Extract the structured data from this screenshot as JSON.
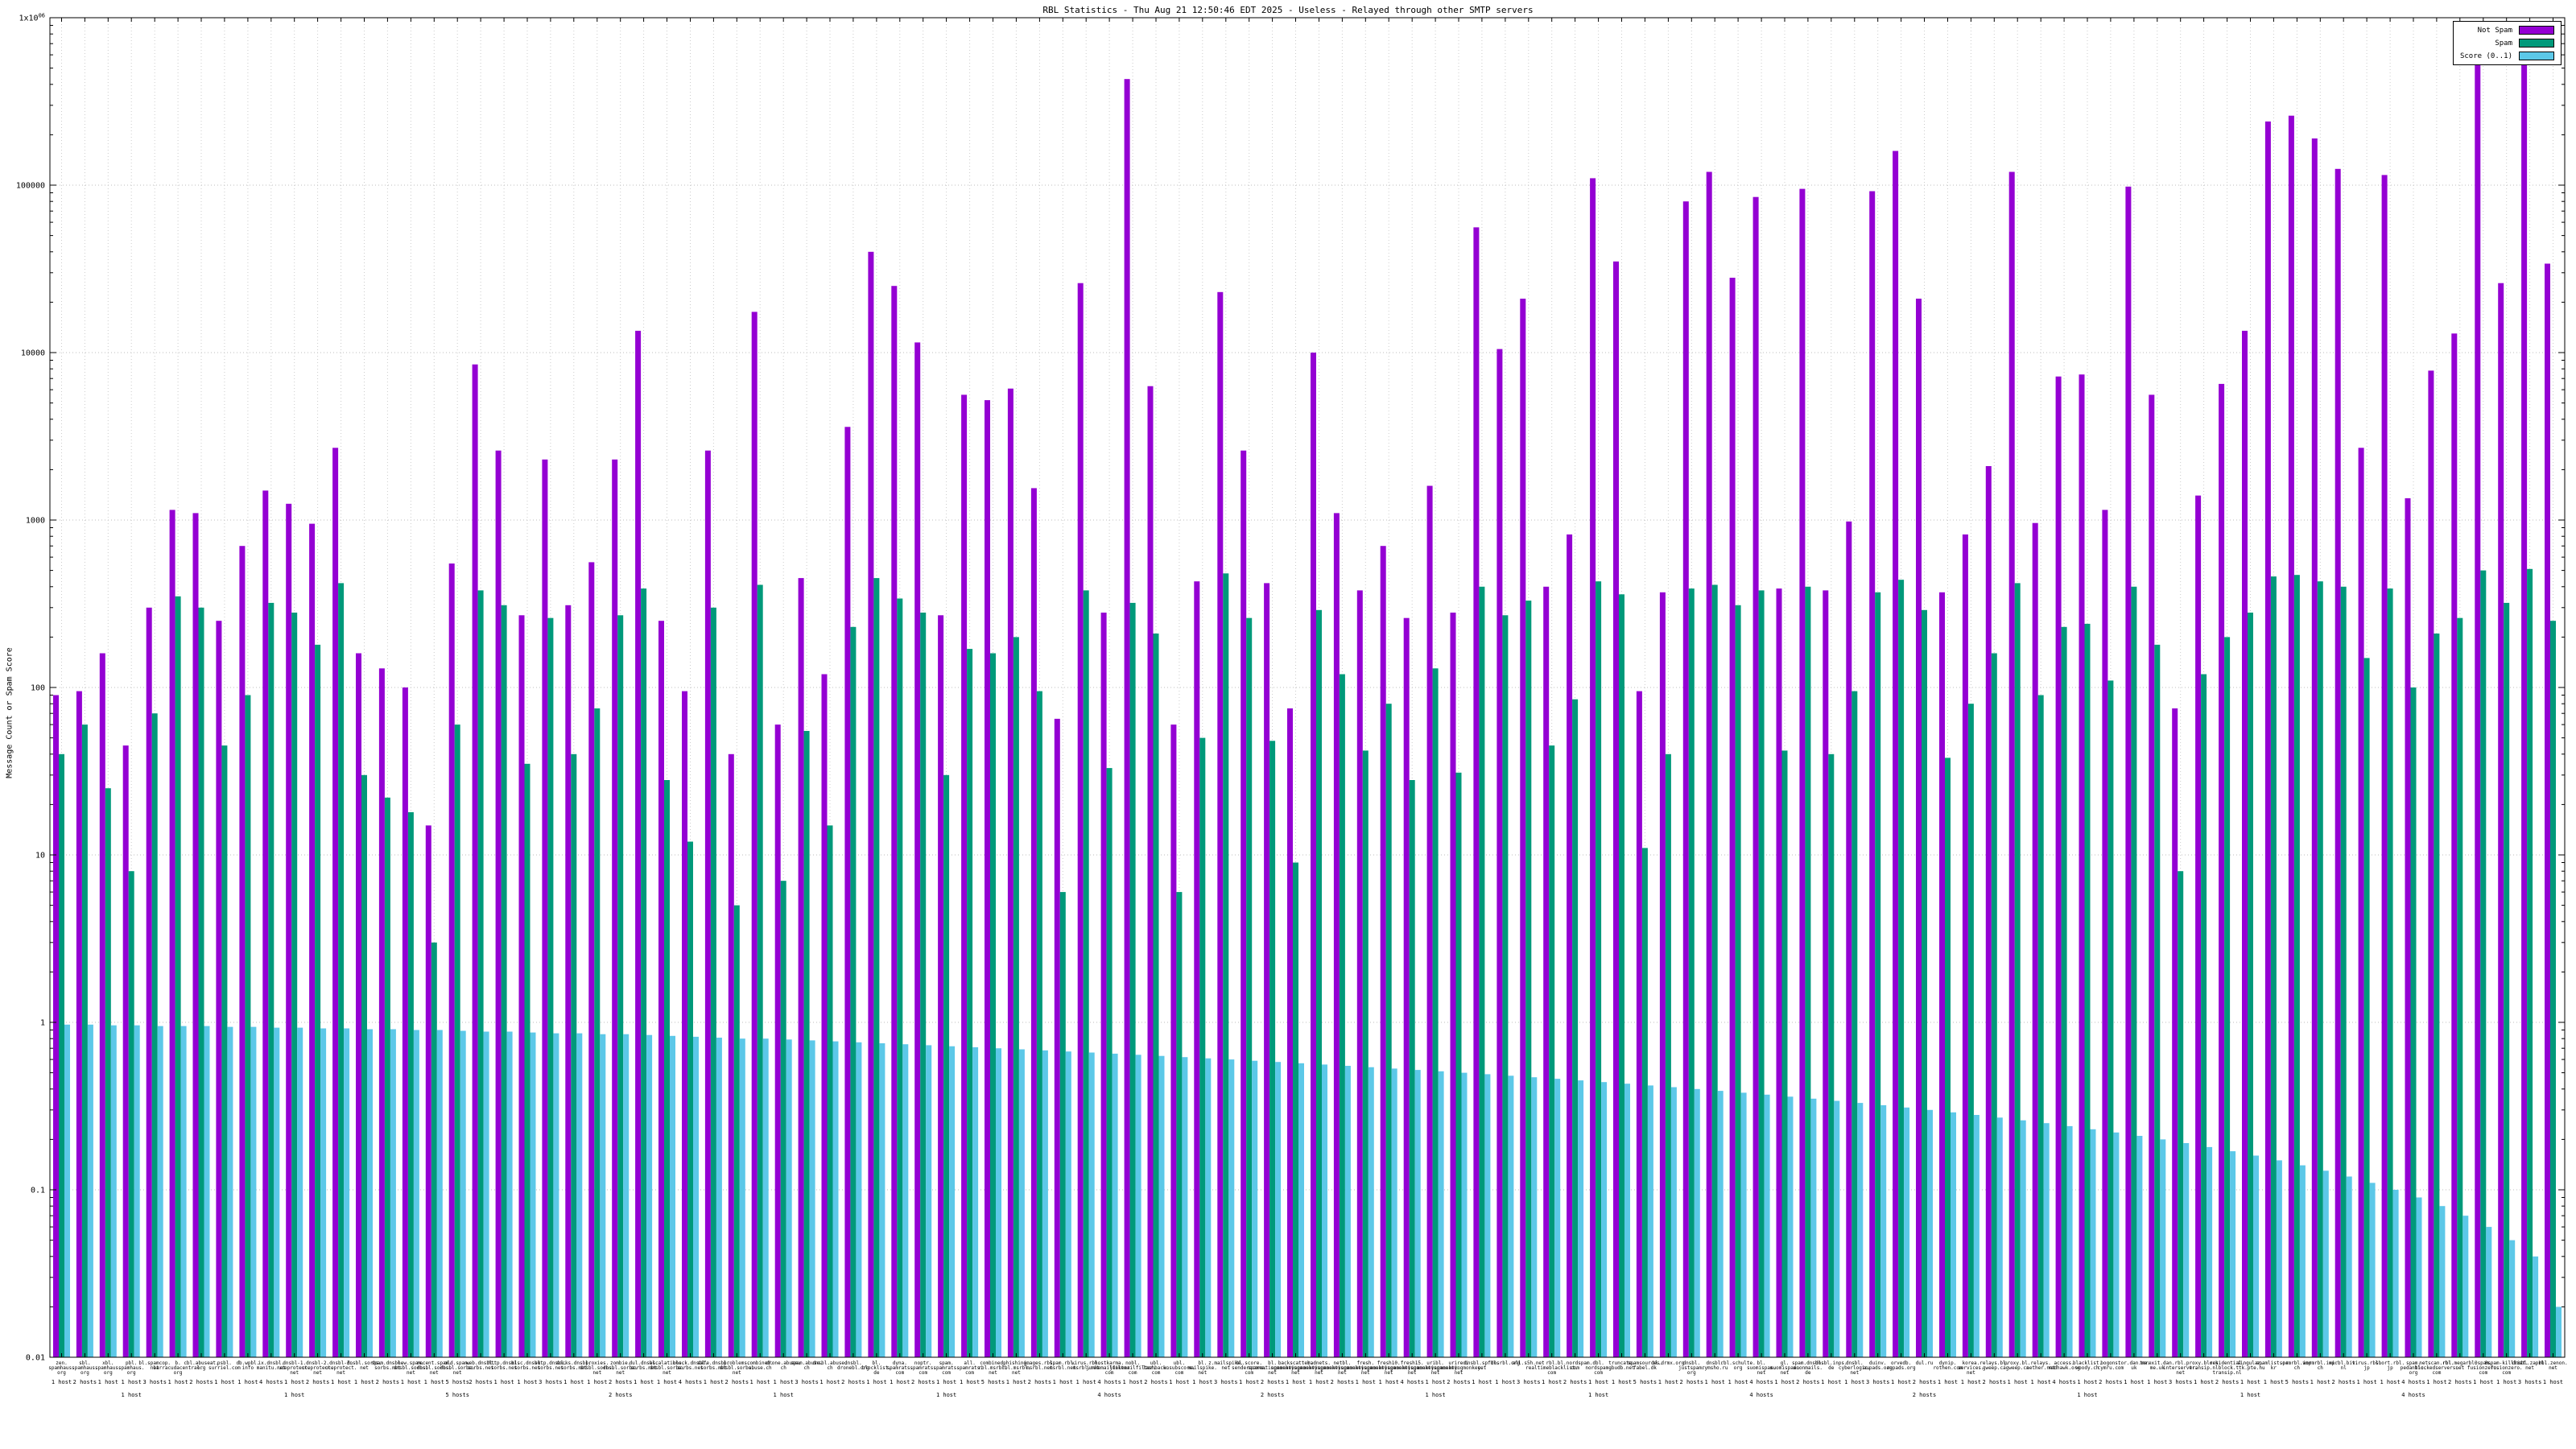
{
  "page": {
    "title": "RBL Statistics"
  },
  "chart_data": {
    "type": "bar",
    "title": "RBL Statistics - Thu Aug 21 12:50:46 EDT 2025 - Useless - Relayed through other SMTP servers",
    "ylabel": "Message Count or Spam Score",
    "y_ticks": [
      "0.01",
      "0.1",
      "1",
      "10",
      "100",
      "1000",
      "10000",
      "100000",
      "1x10^06"
    ],
    "ylim": [
      0.01,
      1000000
    ],
    "log_scale": true,
    "grid": true,
    "legend_position": "top-right",
    "legend": [
      {
        "name": "Not Spam",
        "color": "#9400d3"
      },
      {
        "name": "Spam",
        "color": "#00997a"
      },
      {
        "name": "Score (0..1)",
        "color": "#5cc8e8"
      }
    ],
    "categories": [
      "zen.spamhaus.org",
      "sbl.spamhaus.org",
      "xbl.spamhaus.org",
      "pbl.spamhaus.org",
      "bl.spamcop.net",
      "b.barracudacentral.org",
      "cbl.abuseat.org",
      "psbl.surriel.com",
      "db.wpbl.info",
      "ix.dnsbl.manitu.net",
      "dnsbl-1.uceprotect.net",
      "dnsbl-2.uceprotect.net",
      "dnsbl-3.uceprotect.net",
      "dnsbl.sorbs.net",
      "spam.dnsbl.sorbs.net",
      "new.spam.dnsbl.sorbs.net",
      "recent.spam.dnsbl.sorbs.net",
      "old.spam.dnsbl.sorbs.net",
      "web.dnsbl.sorbs.net",
      "http.dnsbl.sorbs.net",
      "misc.dnsbl.sorbs.net",
      "smtp.dnsbl.sorbs.net",
      "socks.dnsbl.sorbs.net",
      "proxies.dnsbl.sorbs.net",
      "zombie.dnsbl.sorbs.net",
      "dul.dnsbl.sorbs.net",
      "escalations.dnsbl.sorbs.net",
      "block.dnsbl.sorbs.net",
      "safe.dnsbl.sorbs.net",
      "problems.dnsbl.sorbs.net",
      "combined.abuse.ch",
      "drone.abuse.ch",
      "spam.abuse.ch",
      "dnsbl.abuse.ch",
      "dnsbl.dronebl.org",
      "bl.blocklist.de",
      "dyna.spamrats.com",
      "noptr.spamrats.com",
      "spam.spamrats.com",
      "all.spamrats.com",
      "combined.rbl.msrbl.net",
      "phishing.rbl.msrbl.net",
      "images.rbl.msrbl.net",
      "spam.rbl.msrbl.net",
      "virus.rbl.msrbl.net",
      "hostkarma.junkemailfilter.com",
      "nobl.junkemailfilter.com",
      "ubl.lashback.com",
      "ubl.unsubscore.com",
      "bl.mailspike.net",
      "z.mailspike.net",
      "bl.score.senderscore.com",
      "bl.spameatingmonkey.net",
      "backscatter.spameatingmonkey.net",
      "badnets.spameatingmonkey.net",
      "netbl.spameatingmonkey.net",
      "fresh.spameatingmonkey.net",
      "fresh10.spameatingmonkey.net",
      "fresh15.spameatingmonkey.net",
      "uribl.spameatingmonkey.net",
      "urired.spameatingmonkey.net",
      "dnsbl.spfbl.net",
      "dnsrbl.org",
      "all.s5h.net",
      "rbl.realtimeblacklist.com",
      "bl.nordspam.com",
      "dbl.nordspam.com",
      "truncate.gbudb.net",
      "spamsources.fabel.dk",
      "bl.drmx.org",
      "dnsbl.justspam.org",
      "dnsbl.rymsho.ru",
      "rbl.schulte.org",
      "bl.suomispam.net",
      "gl.suomispam.net",
      "spam.dnsbl.anonmails.de",
      "dnsbl.inps.de",
      "dnsbl.cyberlogic.net",
      "duinv.aupads.org",
      "orvedb.aupads.org",
      "dul.ru",
      "dynip.rothen.com",
      "korea.services.net",
      "relays.bl.gweep.ca",
      "proxy.bl.gweep.ca",
      "relays.nether.net",
      "access.redhawk.org",
      "blacklist.woody.ch",
      "bogons.cymru.com",
      "tor.dan.me.uk",
      "torexit.dan.me.uk",
      "rbl.interserver.net",
      "proxy.block.transip.nl",
      "residential.block.transip.nl",
      "singular.ttk.pte.hu",
      "spamlist.or.kr",
      "spamrbl.imp.ch",
      "wormrbl.imp.ch",
      "virbl.bit.nl",
      "virus.rbl.jp",
      "short.rbl.jp",
      "spam.pedantic.org",
      "netscan.rbl.blockedservers.com",
      "rbl.megarbl.net",
      "0spam.fusionzero.com",
      "0spam-killlist.fusionzero.com",
      "dnsbl.zapbl.net",
      "rbl.zenon.net"
    ],
    "host_counts": [
      "1 host",
      "2 hosts",
      "1 host",
      "1 host",
      "3 hosts",
      "1 host",
      "2 hosts",
      "1 host",
      "1 host",
      "4 hosts",
      "1 host",
      "2 hosts",
      "1 host",
      "1 host",
      "2 hosts",
      "1 host",
      "1 host",
      "5 hosts",
      "2 hosts",
      "1 host",
      "1 host",
      "3 hosts",
      "1 host",
      "1 host",
      "2 hosts",
      "1 host",
      "1 host",
      "4 hosts",
      "1 host",
      "2 hosts",
      "1 host",
      "1 host",
      "3 hosts",
      "1 host",
      "2 hosts",
      "1 host",
      "1 host",
      "2 hosts",
      "1 host",
      "1 host",
      "5 hosts",
      "1 host",
      "2 hosts",
      "1 host",
      "1 host",
      "4 hosts",
      "1 host",
      "2 hosts",
      "1 host",
      "1 host",
      "3 hosts",
      "1 host",
      "2 hosts",
      "1 host",
      "1 host",
      "2 hosts",
      "1 host",
      "1 host",
      "4 hosts",
      "1 host",
      "2 hosts",
      "1 host",
      "1 host",
      "3 hosts",
      "1 host",
      "2 hosts",
      "1 host",
      "1 host",
      "5 hosts",
      "1 host",
      "2 hosts",
      "1 host",
      "1 host",
      "4 hosts",
      "1 host",
      "2 hosts",
      "1 host",
      "1 host",
      "3 hosts",
      "1 host",
      "2 hosts",
      "1 host",
      "1 host",
      "2 hosts",
      "1 host",
      "1 host",
      "4 hosts",
      "1 host",
      "2 hosts",
      "1 host",
      "1 host",
      "3 hosts",
      "1 host",
      "2 hosts",
      "1 host",
      "1 host",
      "5 hosts",
      "1 host",
      "2 hosts",
      "1 host",
      "1 host",
      "4 hosts",
      "1 host",
      "2 hosts",
      "1 host",
      "1 host",
      "3 hosts",
      "1 host"
    ],
    "series": [
      {
        "name": "Not Spam",
        "values": [
          90,
          95,
          160,
          45,
          300,
          1150,
          1100,
          250,
          700,
          1500,
          1250,
          950,
          2700,
          160,
          130,
          100,
          15,
          550,
          8500,
          2600,
          270,
          2300,
          310,
          560,
          2300,
          13500,
          250,
          95,
          2600,
          40,
          17500,
          60,
          450,
          120,
          3600,
          40000,
          25000,
          11500,
          270,
          5600,
          5200,
          6100,
          1550,
          65,
          26000,
          280,
          430000,
          6300,
          60,
          430,
          23000,
          2600,
          420,
          75,
          10000,
          1100,
          380,
          700,
          260,
          1600,
          280,
          56000,
          10500,
          21000,
          400,
          820,
          110000,
          35000,
          95,
          370,
          80000,
          120000,
          28000,
          85000,
          390,
          95000,
          380,
          980,
          92000,
          160000,
          21000,
          370,
          820,
          2100,
          120000,
          960,
          7200,
          7400,
          1150,
          98000,
          5600,
          75,
          1400,
          6500,
          13500,
          240000,
          260000,
          190000,
          125000,
          2700,
          115000,
          1350,
          7800,
          13000,
          550000,
          26000,
          580000,
          34000
        ]
      },
      {
        "name": "Spam",
        "values": [
          40,
          60,
          25,
          8,
          70,
          350,
          300,
          45,
          90,
          320,
          280,
          180,
          420,
          30,
          22,
          18,
          3,
          60,
          380,
          310,
          35,
          260,
          40,
          75,
          270,
          390,
          28,
          12,
          300,
          5,
          410,
          7,
          55,
          15,
          230,
          450,
          340,
          280,
          30,
          170,
          160,
          200,
          95,
          6,
          380,
          33,
          320,
          210,
          6,
          50,
          480,
          260,
          48,
          9,
          290,
          120,
          42,
          80,
          28,
          130,
          31,
          400,
          270,
          330,
          45,
          85,
          430,
          360,
          11,
          40,
          390,
          410,
          310,
          380,
          42,
          400,
          40,
          95,
          370,
          440,
          290,
          38,
          80,
          160,
          420,
          90,
          230,
          240,
          110,
          400,
          180,
          8,
          120,
          200,
          280,
          460,
          470,
          430,
          400,
          150,
          390,
          100,
          210,
          260,
          500,
          320,
          510,
          250
        ]
      },
      {
        "name": "Score (0..1)",
        "values": [
          0.97,
          0.97,
          0.96,
          0.96,
          0.95,
          0.95,
          0.95,
          0.94,
          0.94,
          0.93,
          0.93,
          0.92,
          0.92,
          0.91,
          0.91,
          0.9,
          0.9,
          0.89,
          0.88,
          0.88,
          0.87,
          0.86,
          0.86,
          0.85,
          0.85,
          0.84,
          0.83,
          0.82,
          0.81,
          0.8,
          0.8,
          0.79,
          0.78,
          0.77,
          0.76,
          0.75,
          0.74,
          0.73,
          0.72,
          0.71,
          0.7,
          0.69,
          0.68,
          0.67,
          0.66,
          0.65,
          0.64,
          0.63,
          0.62,
          0.61,
          0.6,
          0.59,
          0.58,
          0.57,
          0.56,
          0.55,
          0.54,
          0.53,
          0.52,
          0.51,
          0.5,
          0.49,
          0.48,
          0.47,
          0.46,
          0.45,
          0.44,
          0.43,
          0.42,
          0.41,
          0.4,
          0.39,
          0.38,
          0.37,
          0.36,
          0.35,
          0.34,
          0.33,
          0.32,
          0.31,
          0.3,
          0.29,
          0.28,
          0.27,
          0.26,
          0.25,
          0.24,
          0.23,
          0.22,
          0.21,
          0.2,
          0.19,
          0.18,
          0.17,
          0.16,
          0.15,
          0.14,
          0.13,
          0.12,
          0.11,
          0.1,
          0.09,
          0.08,
          0.07,
          0.06,
          0.05,
          0.04,
          0.02
        ]
      }
    ]
  }
}
